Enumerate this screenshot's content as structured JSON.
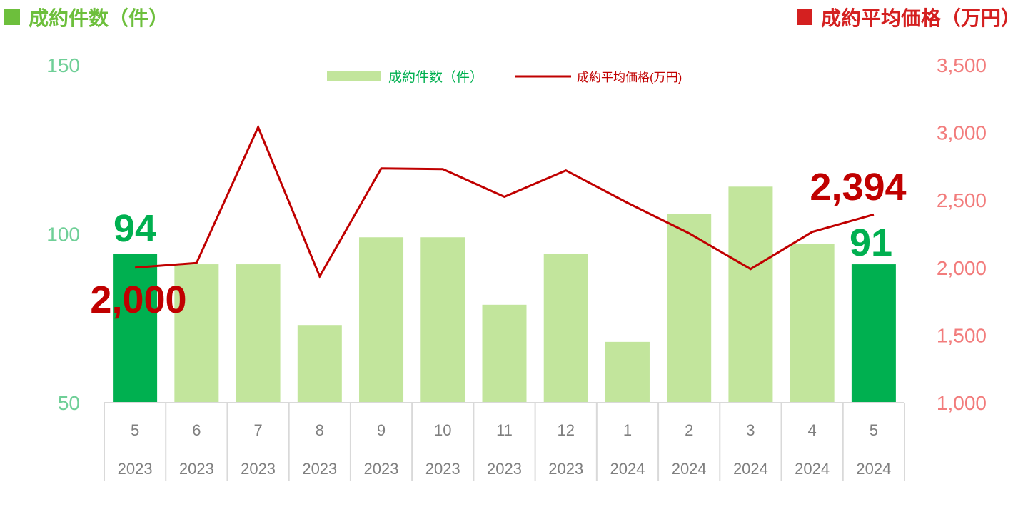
{
  "titles": {
    "left": "成約件数（件）",
    "right": "成約平均価格（万円）"
  },
  "colors": {
    "bar_light": "#c2e59c",
    "bar_highlight": "#00b050",
    "line": "#c00000",
    "left_title": "#6dbf3c",
    "right_title": "#d42020",
    "left_axis": "#6fcf97",
    "right_axis": "#f27c7c",
    "legend_bar_text": "#00b050",
    "legend_line_text": "#c00000",
    "callout_count": "#00b050",
    "callout_price": "#c00000",
    "category_text": "#7f7f7f"
  },
  "chart_data": {
    "type": "bar",
    "categories": [
      "5",
      "6",
      "7",
      "8",
      "9",
      "10",
      "11",
      "12",
      "1",
      "2",
      "3",
      "4",
      "5"
    ],
    "years": [
      "2023",
      "2023",
      "2023",
      "2023",
      "2023",
      "2023",
      "2023",
      "2023",
      "2024",
      "2024",
      "2024",
      "2024",
      "2024"
    ],
    "series": [
      {
        "name": "成約件数（件）",
        "type": "bar",
        "axis": "left",
        "values": [
          94,
          91,
          91,
          73,
          99,
          99,
          79,
          94,
          68,
          106,
          114,
          97,
          91
        ],
        "highlight": [
          0,
          12
        ]
      },
      {
        "name": "成約平均価格(万円)",
        "type": "line",
        "axis": "right",
        "values": [
          2000,
          2035,
          3040,
          1935,
          2735,
          2730,
          2525,
          2720,
          2480,
          2255,
          1990,
          2265,
          2394
        ]
      }
    ],
    "y_left": {
      "min": 50,
      "max": 150,
      "ticks": [
        "50",
        "100",
        "150"
      ]
    },
    "y_right": {
      "min": 1000,
      "max": 3500,
      "ticks": [
        "1,000",
        "1,500",
        "2,000",
        "2,500",
        "3,000",
        "3,500"
      ]
    },
    "callouts": {
      "first_count": "94",
      "last_count": "91",
      "first_price": "2,000",
      "last_price": "2,394"
    },
    "legend_position": "top-center",
    "grid": "major-left-only"
  }
}
